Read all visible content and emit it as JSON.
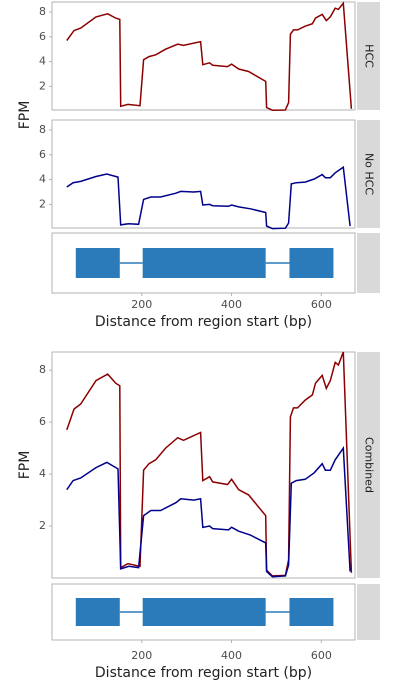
{
  "chart_data": {
    "type": "line",
    "y_label": "FPM",
    "x_label": "Distance from region start (bp)",
    "combined_label": "Combined",
    "xlim": [
      0,
      675
    ],
    "xticks": [
      200,
      400,
      600
    ],
    "ylim": [
      0.1,
      8.8
    ],
    "combined_ylim": [
      0,
      8.7
    ],
    "yticks": [
      2,
      4,
      6,
      8
    ],
    "exon_color": "#2b7bba",
    "exons": [
      [
        53,
        151
      ],
      [
        202,
        476
      ],
      [
        529,
        627
      ]
    ],
    "series": [
      {
        "name": "HCC",
        "color": "#8b0000",
        "x": [
          33,
          49,
          64,
          98,
          124,
          142,
          151,
          153,
          169,
          196,
          204,
          216,
          231,
          253,
          280,
          293,
          331,
          336,
          351,
          358,
          391,
          400,
          416,
          438,
          476,
          478,
          491,
          520,
          527,
          531,
          538,
          547,
          564,
          580,
          587,
          602,
          611,
          620,
          631,
          638,
          649,
          667
        ],
        "values": [
          5.7,
          6.5,
          6.7,
          7.6,
          7.85,
          7.5,
          7.4,
          0.4,
          0.55,
          0.45,
          4.15,
          4.4,
          4.55,
          5.0,
          5.4,
          5.3,
          5.6,
          3.75,
          3.9,
          3.7,
          3.6,
          3.8,
          3.4,
          3.2,
          2.4,
          0.3,
          0.08,
          0.1,
          0.7,
          6.2,
          6.55,
          6.55,
          6.85,
          7.05,
          7.5,
          7.8,
          7.3,
          7.6,
          8.3,
          8.2,
          8.7,
          0.2
        ]
      },
      {
        "name": "No HCC",
        "color": "#00008b",
        "x": [
          33,
          47,
          64,
          98,
          122,
          147,
          153,
          171,
          193,
          204,
          220,
          242,
          276,
          287,
          316,
          331,
          336,
          351,
          358,
          393,
          400,
          416,
          442,
          476,
          478,
          491,
          520,
          527,
          533,
          544,
          564,
          584,
          602,
          609,
          620,
          631,
          649,
          664
        ],
        "values": [
          3.4,
          3.75,
          3.85,
          4.25,
          4.45,
          4.2,
          0.35,
          0.45,
          0.4,
          2.4,
          2.6,
          2.6,
          2.9,
          3.05,
          3.0,
          3.05,
          1.95,
          2.0,
          1.9,
          1.85,
          1.95,
          1.8,
          1.65,
          1.35,
          0.25,
          0.05,
          0.08,
          0.5,
          3.65,
          3.75,
          3.8,
          4.05,
          4.4,
          4.15,
          4.15,
          4.55,
          5.0,
          0.25
        ]
      }
    ]
  }
}
